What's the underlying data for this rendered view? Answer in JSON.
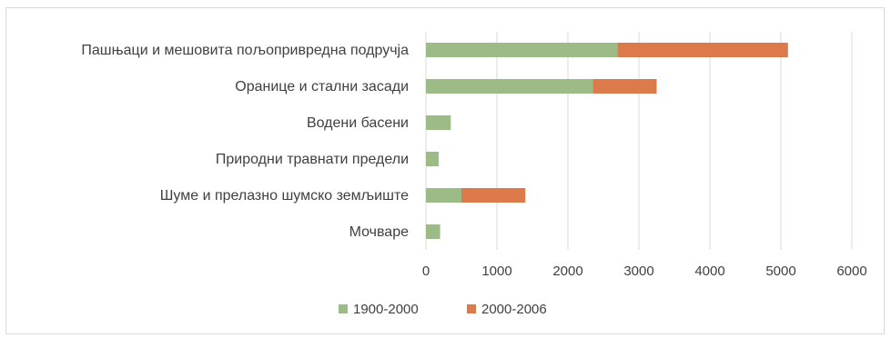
{
  "chart_data": {
    "type": "bar",
    "orientation": "horizontal",
    "stacked": true,
    "categories": [
      "Пашњаци и мешовита пољопривредна подручја",
      "Оранице и стални засади",
      "Водени басени",
      "Природни травнати предели",
      "Шуме и прелазно шумско земљиште",
      "Мочваре"
    ],
    "series": [
      {
        "name": "1900-2000",
        "values": [
          2700,
          2350,
          350,
          180,
          500,
          200
        ],
        "color": "#9cbb86"
      },
      {
        "name": "2000-2006",
        "values": [
          2400,
          900,
          0,
          0,
          900,
          0
        ],
        "color": "#dd7a4c"
      }
    ],
    "xticks": [
      "0",
      "1000",
      "2000",
      "3000",
      "4000",
      "5000",
      "6000"
    ],
    "xlim": [
      0,
      6000
    ],
    "grid": true,
    "legend": "bottom"
  }
}
